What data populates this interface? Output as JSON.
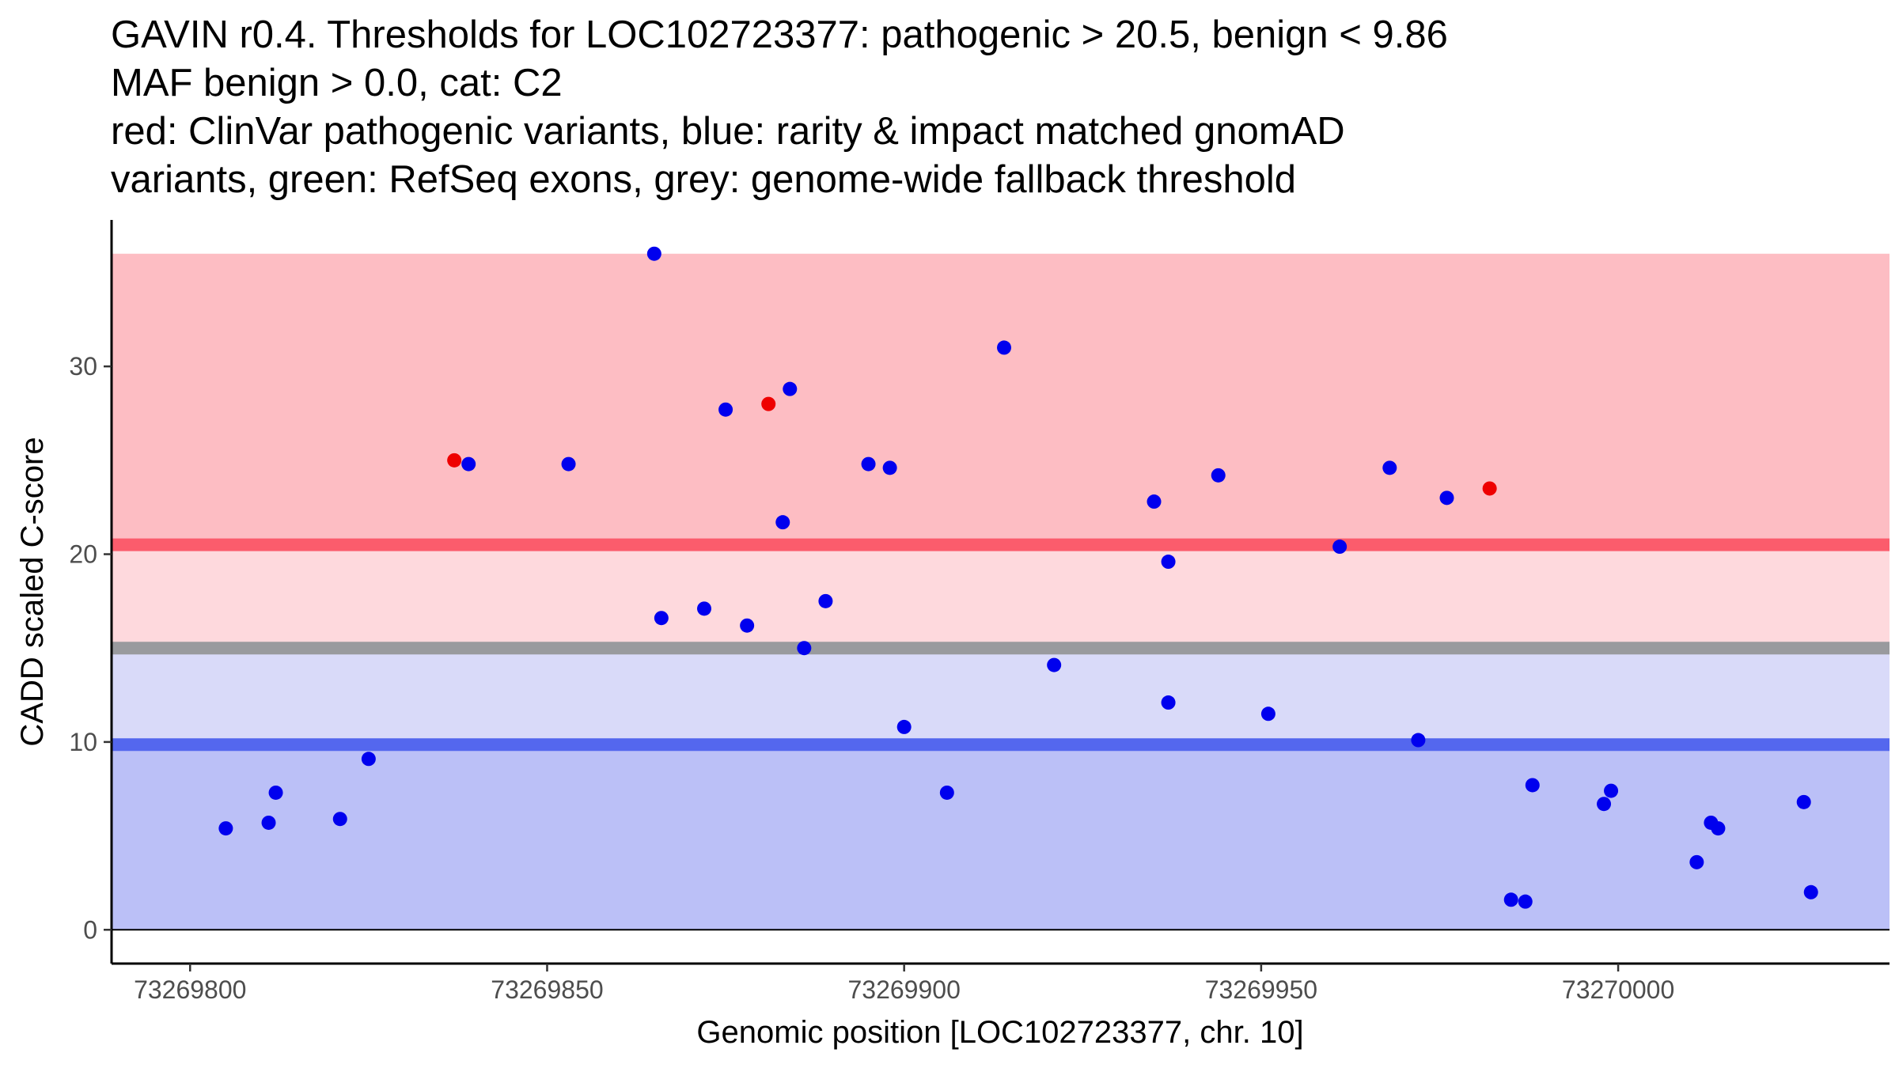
{
  "title_lines": [
    "GAVIN r0.4. Thresholds for LOC102723377: pathogenic > 20.5, benign < 9.86",
    "MAF benign > 0.0, cat: C2",
    "red: ClinVar pathogenic variants, blue: rarity & impact matched gnomAD",
    "variants, green: RefSeq exons, grey: genome-wide fallback threshold"
  ],
  "chart_data": {
    "type": "scatter",
    "title": "GAVIN r0.4. Thresholds for LOC102723377: pathogenic > 20.5, benign < 9.86 / MAF benign > 0.0, cat: C2 / red: ClinVar pathogenic variants, blue: rarity & impact matched gnomAD variants, green: RefSeq exons, grey: genome-wide fallback threshold",
    "xlabel": "Genomic position [LOC102723377, chr. 10]",
    "ylabel": "CADD scaled C-score",
    "xlim": [
      73269789,
      73270038
    ],
    "ylim": [
      -1.8,
      37.8
    ],
    "xticks": [
      73269800,
      73269850,
      73269900,
      73269950,
      73270000
    ],
    "yticks": [
      0,
      10,
      20,
      30
    ],
    "grid": false,
    "thresholds": {
      "pathogenic": 20.5,
      "benign": 9.86,
      "genome_wide_fallback": 15
    },
    "bands": [
      {
        "name": "pathogenic-region",
        "from": 20.5,
        "to": 36,
        "color": "#fdbdc3"
      },
      {
        "name": "above-fallback-region",
        "from": 15,
        "to": 20.5,
        "color": "#fed9dd"
      },
      {
        "name": "below-fallback-region",
        "from": 9.86,
        "to": 15,
        "color": "#d9daf9"
      },
      {
        "name": "benign-region",
        "from": 0,
        "to": 9.86,
        "color": "#bbc0f7"
      }
    ],
    "lines": [
      {
        "name": "pathogenic-threshold",
        "y": 20.5,
        "color": "#fb5c6c"
      },
      {
        "name": "fallback-threshold",
        "y": 15,
        "color": "#999a9e"
      },
      {
        "name": "benign-threshold",
        "y": 9.86,
        "color": "#5467ee"
      }
    ],
    "series": [
      {
        "name": "ClinVar pathogenic variants",
        "color": "#ee0000",
        "points": [
          {
            "x": 73269837,
            "y": 25.0
          },
          {
            "x": 73269881,
            "y": 28.0
          },
          {
            "x": 73269982,
            "y": 23.5
          }
        ]
      },
      {
        "name": "rarity & impact matched gnomAD variants",
        "color": "#0000ee",
        "points": [
          {
            "x": 73269805,
            "y": 5.4
          },
          {
            "x": 73269811,
            "y": 5.7
          },
          {
            "x": 73269812,
            "y": 7.3
          },
          {
            "x": 73269821,
            "y": 5.9
          },
          {
            "x": 73269825,
            "y": 9.1
          },
          {
            "x": 73269839,
            "y": 24.8
          },
          {
            "x": 73269853,
            "y": 24.8
          },
          {
            "x": 73269865,
            "y": 36.0
          },
          {
            "x": 73269866,
            "y": 16.6
          },
          {
            "x": 73269872,
            "y": 17.1
          },
          {
            "x": 73269875,
            "y": 27.7
          },
          {
            "x": 73269878,
            "y": 16.2
          },
          {
            "x": 73269883,
            "y": 21.7
          },
          {
            "x": 73269884,
            "y": 28.8
          },
          {
            "x": 73269886,
            "y": 15.0
          },
          {
            "x": 73269889,
            "y": 17.5
          },
          {
            "x": 73269895,
            "y": 24.8
          },
          {
            "x": 73269898,
            "y": 24.6
          },
          {
            "x": 73269900,
            "y": 10.8
          },
          {
            "x": 73269906,
            "y": 7.3
          },
          {
            "x": 73269914,
            "y": 31.0
          },
          {
            "x": 73269921,
            "y": 14.1
          },
          {
            "x": 73269935,
            "y": 22.8
          },
          {
            "x": 73269937,
            "y": 19.6
          },
          {
            "x": 73269937,
            "y": 12.1
          },
          {
            "x": 73269944,
            "y": 24.2
          },
          {
            "x": 73269951,
            "y": 11.5
          },
          {
            "x": 73269961,
            "y": 20.4
          },
          {
            "x": 73269968,
            "y": 24.6
          },
          {
            "x": 73269972,
            "y": 10.1
          },
          {
            "x": 73269976,
            "y": 23.0
          },
          {
            "x": 73269985,
            "y": 1.6
          },
          {
            "x": 73269987,
            "y": 1.5
          },
          {
            "x": 73269988,
            "y": 7.7
          },
          {
            "x": 73269998,
            "y": 6.7
          },
          {
            "x": 73269999,
            "y": 7.4
          },
          {
            "x": 73270011,
            "y": 3.6
          },
          {
            "x": 73270013,
            "y": 5.7
          },
          {
            "x": 73270014,
            "y": 5.4
          },
          {
            "x": 73270026,
            "y": 6.8
          },
          {
            "x": 73270027,
            "y": 2.0
          }
        ]
      }
    ]
  }
}
